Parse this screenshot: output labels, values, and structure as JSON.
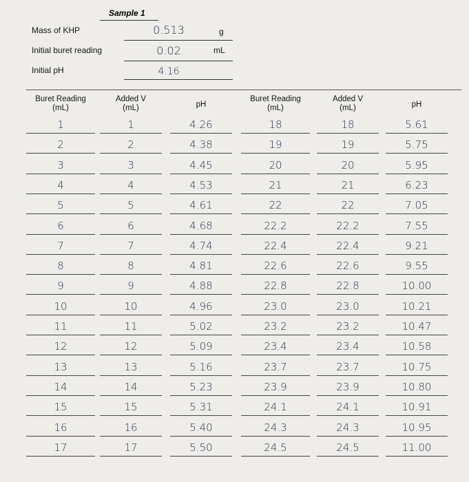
{
  "header": {
    "sample": "Sample 1"
  },
  "fields": [
    {
      "label": "Mass of KHP",
      "value": "0.513",
      "unit": "g"
    },
    {
      "label": "Initial buret reading",
      "value": "0.02",
      "unit": "mL"
    },
    {
      "label": "Initial pH",
      "value": "4.16"
    }
  ],
  "table": {
    "headers": [
      "Buret Reading\n(mL)",
      "Added V\n(mL)",
      "pH",
      "Buret Reading\n(mL)",
      "Added V\n(mL)",
      "pH"
    ],
    "rows": [
      [
        "1",
        "1",
        "4.26",
        "18",
        "18",
        "5.61"
      ],
      [
        "2",
        "2",
        "4.38",
        "19",
        "19",
        "5.75"
      ],
      [
        "3",
        "3",
        "4.45",
        "20",
        "20",
        "5.95"
      ],
      [
        "4",
        "4",
        "4.53",
        "21",
        "21",
        "6.23"
      ],
      [
        "5",
        "5",
        "4.61",
        "22",
        "22",
        "7.05"
      ],
      [
        "6",
        "6",
        "4.68",
        "22.2",
        "22.2",
        "7.55"
      ],
      [
        "7",
        "7",
        "4.74",
        "22.4",
        "22.4",
        "9.21"
      ],
      [
        "8",
        "8",
        "4.81",
        "22.6",
        "22.6",
        "9.55"
      ],
      [
        "9",
        "9",
        "4.88",
        "22.8",
        "22.8",
        "10.00"
      ],
      [
        "10",
        "10",
        "4.96",
        "23.0",
        "23.0",
        "10.21"
      ],
      [
        "11",
        "11",
        "5.02",
        "23.2",
        "23.2",
        "10.47"
      ],
      [
        "12",
        "12",
        "5.09",
        "23.4",
        "23.4",
        "10.58"
      ],
      [
        "13",
        "13",
        "5.16",
        "23.7",
        "23.7",
        "10.75"
      ],
      [
        "14",
        "14",
        "5.23",
        "23.9",
        "23.9",
        "10.80"
      ],
      [
        "15",
        "15",
        "5.31",
        "24.1",
        "24.1",
        "10.91"
      ],
      [
        "16",
        "16",
        "5.40",
        "24.3",
        "24.3",
        "10.95"
      ],
      [
        "17",
        "17",
        "5.50",
        "24.5",
        "24.5",
        "11.00"
      ]
    ]
  }
}
